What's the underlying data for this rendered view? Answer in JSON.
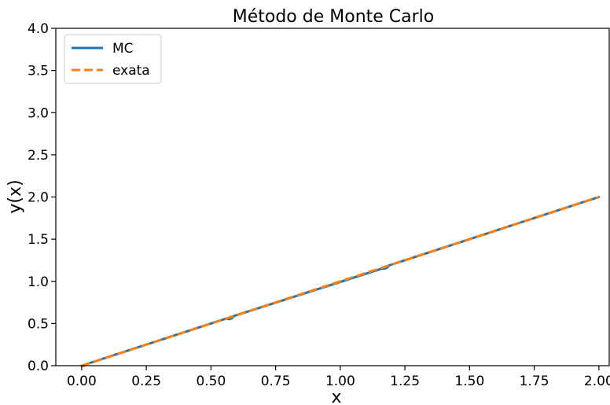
{
  "chart_data": {
    "type": "line",
    "title": "Método de Monte Carlo",
    "xlabel": "x",
    "ylabel": "y(x)",
    "xlim": [
      -0.1,
      2.04
    ],
    "ylim": [
      0,
      4
    ],
    "xticks": [
      "0.00",
      "0.25",
      "0.50",
      "0.75",
      "1.00",
      "1.25",
      "1.50",
      "1.75",
      "2.00"
    ],
    "yticks": [
      "0.0",
      "0.5",
      "1.0",
      "1.5",
      "2.0",
      "2.5",
      "3.0",
      "3.5",
      "4.0"
    ],
    "grid": false,
    "legend_position": "top-left",
    "series": [
      {
        "name": "MC",
        "color": "#1f77b4",
        "style": "solid",
        "x": [
          0.0,
          0.01,
          0.02,
          0.56,
          0.57,
          0.58,
          0.59,
          1.16,
          1.17,
          1.18,
          1.19,
          2.0
        ],
        "y": [
          0.0,
          0.0,
          0.02,
          0.56,
          0.55,
          0.56,
          0.59,
          1.15,
          1.15,
          1.16,
          1.19,
          2.0
        ]
      },
      {
        "name": "exata",
        "color": "#ff7f0e",
        "style": "dashed",
        "x": [
          0.0,
          2.0
        ],
        "y": [
          0.0,
          2.0
        ]
      }
    ]
  }
}
